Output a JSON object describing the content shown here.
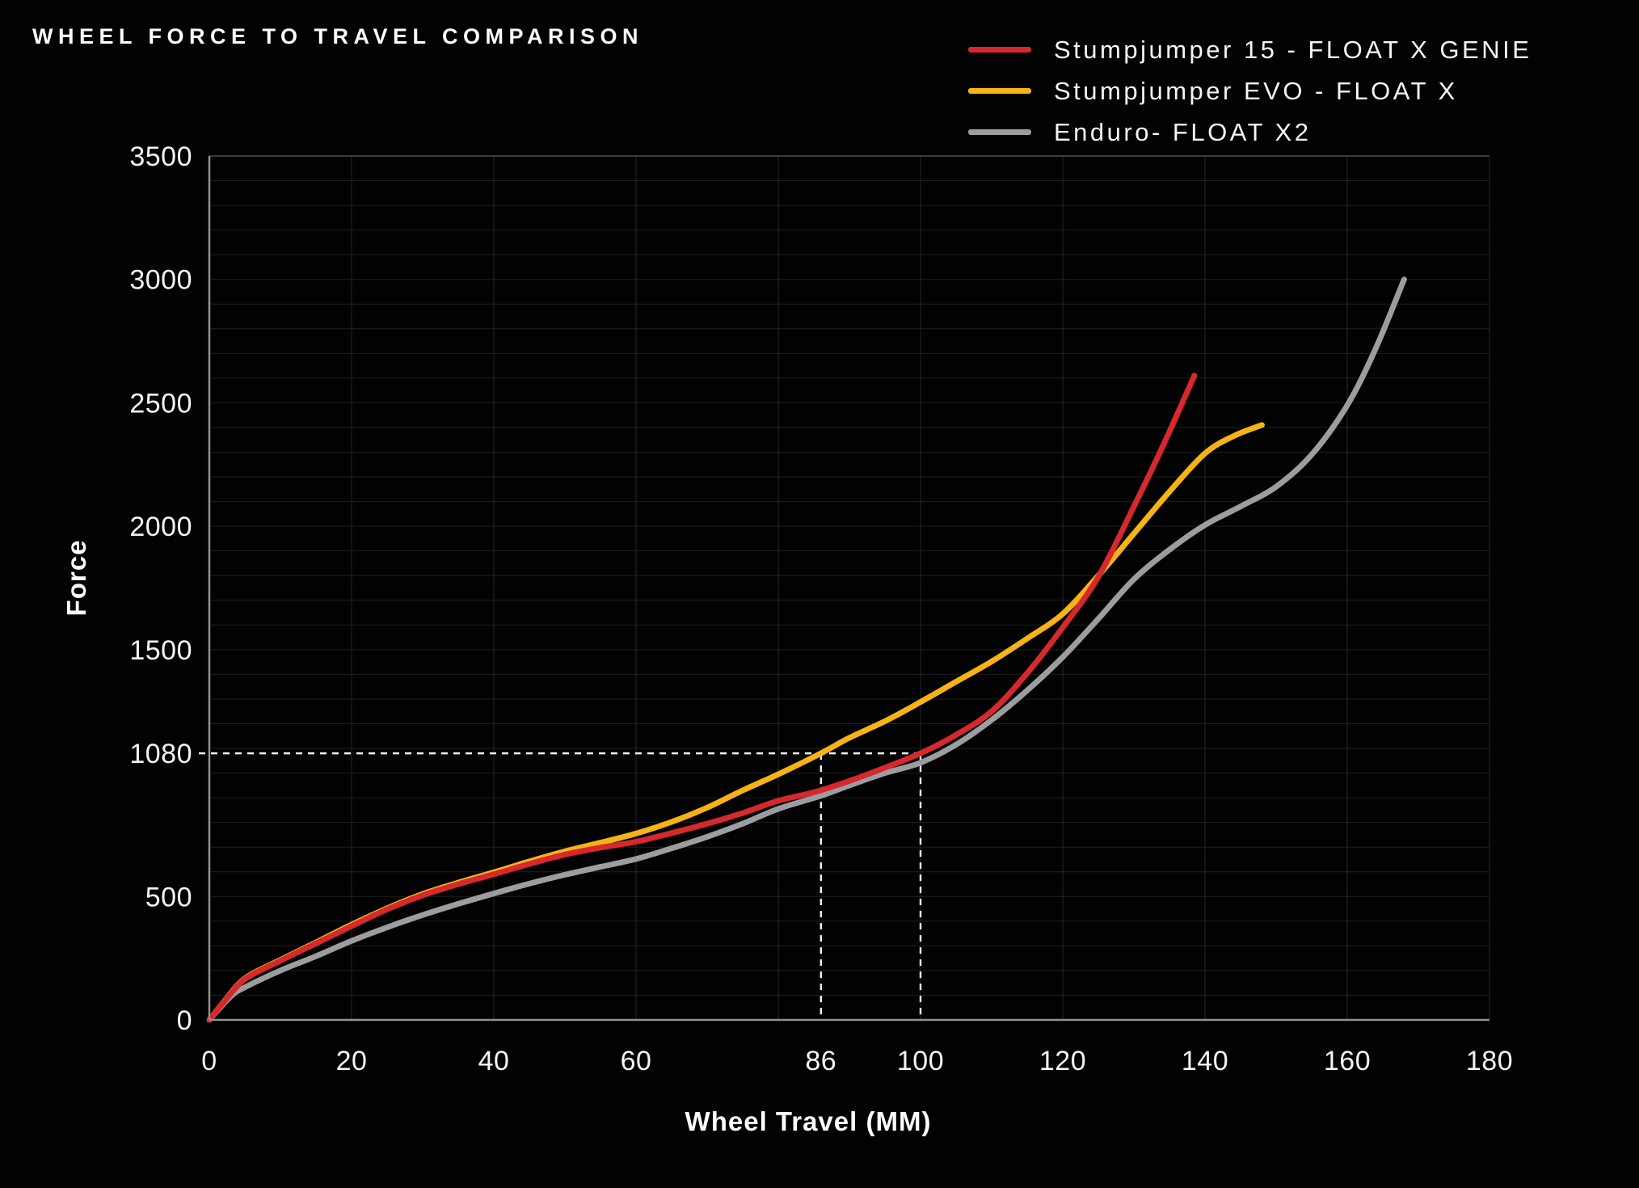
{
  "title": "WHEEL FORCE TO TRAVEL COMPARISON",
  "legend": {
    "items": [
      {
        "label": "Stumpjumper 15 - FLOAT X GENIE",
        "color": "#d7282d"
      },
      {
        "label": "Stumpjumper EVO - FLOAT X",
        "color": "#f7b314"
      },
      {
        "label": "Enduro- FLOAT X2",
        "color": "#9b9da1"
      }
    ]
  },
  "colors": {
    "background": "#020202",
    "text": "#f4f4f4",
    "axis": "#909295",
    "grid_vertical": "#262626",
    "grid_horizontal": "#1f1f1f",
    "top_border": "#4e4e4e",
    "dashed": "#f0f0f0",
    "highlight": "#d7282d"
  },
  "chart_data": {
    "type": "line",
    "title": "WHEEL FORCE TO TRAVEL COMPARISON",
    "xlabel": "Wheel Travel (MM)",
    "ylabel": "Force",
    "xlim": [
      0,
      180
    ],
    "ylim": [
      0,
      3500
    ],
    "grid": {
      "x_step": 20,
      "y_step": 100,
      "grid_on": true
    },
    "legend_position": "top-right",
    "x_ticks": [
      {
        "v": 0
      },
      {
        "v": 20
      },
      {
        "v": 40
      },
      {
        "v": 60
      },
      {
        "v": 86,
        "highlight": true
      },
      {
        "v": 100,
        "highlight": true
      },
      {
        "v": 120
      },
      {
        "v": 140
      },
      {
        "v": 160
      },
      {
        "v": 180
      }
    ],
    "y_ticks": [
      {
        "v": 0
      },
      {
        "v": 500
      },
      {
        "v": 1080,
        "highlight": true
      },
      {
        "v": 1500
      },
      {
        "v": 2000
      },
      {
        "v": 2500
      },
      {
        "v": 3000
      },
      {
        "v": 3500
      }
    ],
    "annotations": {
      "dashed_force_level": 1080,
      "dashed_travel_marks": [
        86,
        100
      ]
    },
    "series": [
      {
        "name": "Stumpjumper 15 - FLOAT X GENIE",
        "color": "#d7282d",
        "points": [
          [
            0,
            0
          ],
          [
            2,
            70
          ],
          [
            5,
            165
          ],
          [
            10,
            240
          ],
          [
            15,
            310
          ],
          [
            20,
            380
          ],
          [
            25,
            448
          ],
          [
            30,
            505
          ],
          [
            35,
            550
          ],
          [
            40,
            590
          ],
          [
            45,
            632
          ],
          [
            50,
            670
          ],
          [
            55,
            698
          ],
          [
            60,
            722
          ],
          [
            65,
            757
          ],
          [
            70,
            795
          ],
          [
            75,
            838
          ],
          [
            80,
            888
          ],
          [
            85,
            922
          ],
          [
            90,
            968
          ],
          [
            95,
            1022
          ],
          [
            100,
            1080
          ],
          [
            105,
            1155
          ],
          [
            110,
            1250
          ],
          [
            115,
            1405
          ],
          [
            120,
            1590
          ],
          [
            125,
            1795
          ],
          [
            130,
            2080
          ],
          [
            134,
            2320
          ],
          [
            138.5,
            2610
          ]
        ]
      },
      {
        "name": "Stumpjumper EVO - FLOAT X",
        "color": "#f7b314",
        "points": [
          [
            0,
            0
          ],
          [
            2,
            72
          ],
          [
            5,
            168
          ],
          [
            10,
            243
          ],
          [
            15,
            314
          ],
          [
            20,
            386
          ],
          [
            25,
            452
          ],
          [
            30,
            510
          ],
          [
            35,
            556
          ],
          [
            40,
            598
          ],
          [
            45,
            642
          ],
          [
            50,
            683
          ],
          [
            55,
            718
          ],
          [
            60,
            755
          ],
          [
            65,
            802
          ],
          [
            70,
            860
          ],
          [
            75,
            930
          ],
          [
            80,
            995
          ],
          [
            86,
            1080
          ],
          [
            90,
            1143
          ],
          [
            95,
            1210
          ],
          [
            100,
            1288
          ],
          [
            105,
            1370
          ],
          [
            110,
            1452
          ],
          [
            115,
            1545
          ],
          [
            120,
            1645
          ],
          [
            125,
            1800
          ],
          [
            130,
            1970
          ],
          [
            135,
            2140
          ],
          [
            140,
            2295
          ],
          [
            144,
            2365
          ],
          [
            148,
            2410
          ]
        ]
      },
      {
        "name": "Enduro- FLOAT X2",
        "color": "#9b9da1",
        "points": [
          [
            0,
            0
          ],
          [
            3,
            95
          ],
          [
            5,
            132
          ],
          [
            10,
            200
          ],
          [
            15,
            258
          ],
          [
            20,
            320
          ],
          [
            25,
            375
          ],
          [
            30,
            425
          ],
          [
            35,
            470
          ],
          [
            40,
            512
          ],
          [
            45,
            552
          ],
          [
            50,
            588
          ],
          [
            55,
            620
          ],
          [
            60,
            652
          ],
          [
            65,
            695
          ],
          [
            70,
            742
          ],
          [
            75,
            795
          ],
          [
            80,
            855
          ],
          [
            86,
            908
          ],
          [
            90,
            950
          ],
          [
            95,
            1000
          ],
          [
            100,
            1042
          ],
          [
            105,
            1115
          ],
          [
            110,
            1215
          ],
          [
            115,
            1335
          ],
          [
            120,
            1470
          ],
          [
            125,
            1625
          ],
          [
            130,
            1785
          ],
          [
            135,
            1905
          ],
          [
            140,
            2005
          ],
          [
            145,
            2080
          ],
          [
            150,
            2160
          ],
          [
            155,
            2290
          ],
          [
            160,
            2490
          ],
          [
            164,
            2720
          ],
          [
            168,
            3000
          ]
        ]
      }
    ]
  }
}
